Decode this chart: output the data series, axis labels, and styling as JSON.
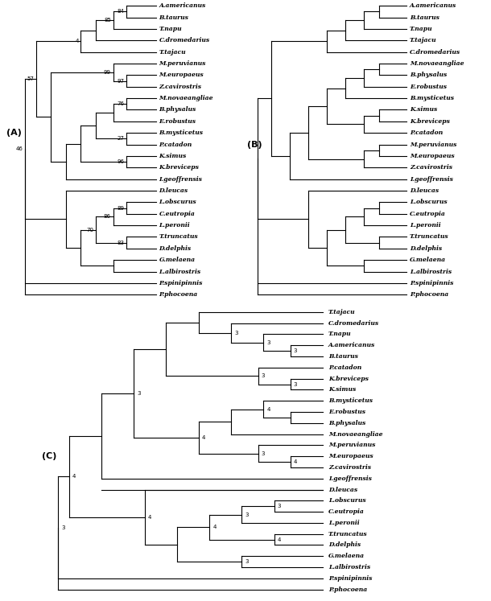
{
  "figsize": [
    6.1,
    7.47
  ],
  "dpi": 100,
  "tree_A": {
    "label": "(A)",
    "taxa": [
      "A.americanus",
      "B.taurus",
      "T.napu",
      "C.dromedarius",
      "T.tajacu",
      "M.peruvianus",
      "M.europaeus",
      "Z.cavirostris",
      "M.novaeangliae",
      "B.physalus",
      "E.robustus",
      "B.mysticetus",
      "P.catadon",
      "K.simus",
      "K.breviceps",
      "I.geoffrensis",
      "D.leucas",
      "L.obscurus",
      "C.eutropia",
      "L.peronii",
      "T.truncatus",
      "D.delphis",
      "G.melaena",
      "L.albirostris",
      "P.spinipinnis",
      "P.phocoena"
    ]
  },
  "tree_B": {
    "label": "(B)",
    "taxa": [
      "A.americanus",
      "B.taurus",
      "T.napu",
      "T.tajacu",
      "C.dromedarius",
      "M.novaeangliae",
      "B.physalus",
      "E.robustus",
      "B.mysticetus",
      "K.simus",
      "K.breviceps",
      "P.catadon",
      "M.peruvianus",
      "M.europaeus",
      "Z.cavirostris",
      "I.geoffrensis",
      "D.leucas",
      "L.obscurus",
      "C.eutropia",
      "L.peronii",
      "T.truncatus",
      "D.delphis",
      "G.melaena",
      "L.albirostris",
      "P.spinipinnis",
      "P.phocoena"
    ]
  },
  "tree_C": {
    "label": "(C)",
    "taxa": [
      "T.tajacu",
      "C.dromedarius",
      "T.napu",
      "A.americanus",
      "B.taurus",
      "P.catadon",
      "K.breviceps",
      "K.simus",
      "B.mysticetus",
      "E.robustus",
      "B.physalus",
      "M.novaeangliae",
      "M.peruvianus",
      "M.europaeus",
      "Z.cavirostris",
      "I.geoffrensis",
      "D.leucas",
      "L.obscurus",
      "C.eutropia",
      "L.peronii",
      "T.truncatus",
      "D.delphis",
      "G.melaena",
      "L.albirostris",
      "P.spinipinnis",
      "P.phocoena"
    ]
  }
}
